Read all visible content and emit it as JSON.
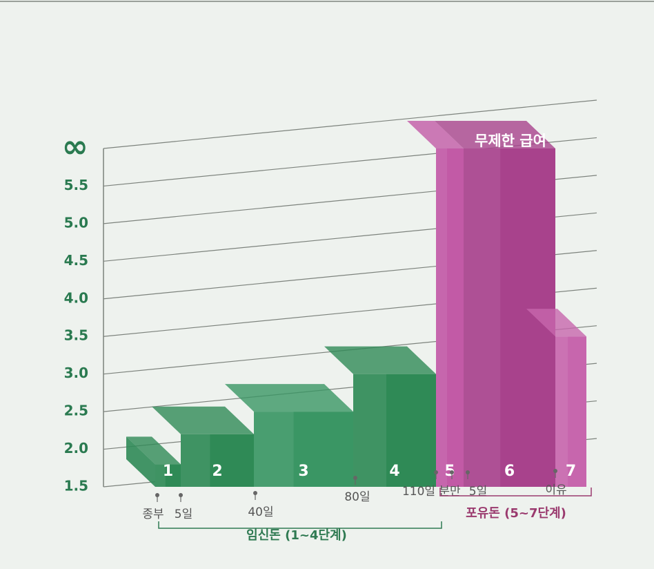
{
  "chart_data": {
    "type": "bar",
    "categories": [
      "1",
      "2",
      "3",
      "4",
      "5",
      "6",
      "7"
    ],
    "values": [
      1.8,
      2.2,
      2.5,
      3.0,
      6,
      6,
      3.5
    ],
    "colors": [
      "#2f8a56",
      "#2f8a56",
      "#3a9664",
      "#2f8a56",
      "#c25aa6",
      "#a8428c",
      "#c766ad"
    ],
    "ylim": [
      1.5,
      6
    ],
    "yticks": [
      1.5,
      {
        "value": 2,
        "label": "2.0"
      },
      2.5,
      {
        "value": 3,
        "label": "3.0"
      },
      3.5,
      {
        "value": 4,
        "label": "4.0"
      },
      4.5,
      {
        "value": 5,
        "label": "5.0"
      },
      5.5,
      {
        "value": 6,
        "label": "∞"
      }
    ],
    "grid": true,
    "annotation": "무제한 급여",
    "events": [
      "종부",
      "5일",
      "40일",
      "80일",
      "110일",
      "분만",
      "5일",
      "이유"
    ],
    "phases": [
      {
        "label": "임신돈 (1~4단계)",
        "color": "#2f7a52"
      },
      {
        "label": "포유돈 (5~7단계)",
        "color": "#9a3a6e"
      }
    ]
  }
}
